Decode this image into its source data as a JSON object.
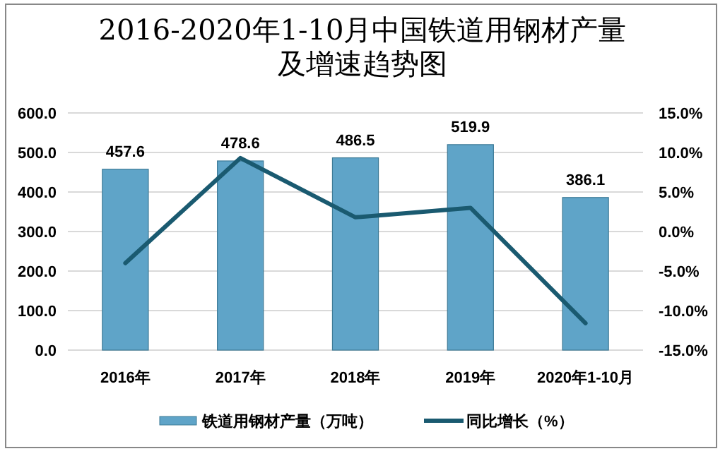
{
  "chart_data": {
    "type": "bar",
    "title": "2016-2020年1-10月中国铁道用钢材产量及增速趋势图",
    "categories": [
      "2016年",
      "2017年",
      "2018年",
      "2019年",
      "2020年1-10月"
    ],
    "series": [
      {
        "name": "铁道用钢材产量（万吨）",
        "color": "#5fa4c8",
        "values": [
          457.6,
          478.6,
          486.5,
          519.9,
          386.1
        ],
        "value_labels": [
          "457.6",
          "478.6",
          "486.5",
          "519.9",
          "386.1"
        ]
      },
      {
        "name": "同比增长（%）",
        "type": "line",
        "axis": "y2",
        "color": "#1a5a70",
        "values": [
          -4.0,
          9.3,
          1.8,
          3.0,
          -11.6
        ]
      }
    ],
    "ylim": [
      0,
      600
    ],
    "yticks": [
      {
        "value": 0,
        "label": "0.0"
      },
      {
        "value": 100,
        "label": "100.0"
      },
      {
        "value": 200,
        "label": "200.0"
      },
      {
        "value": 300,
        "label": "300.0"
      },
      {
        "value": 400,
        "label": "400.0"
      },
      {
        "value": 500,
        "label": "500.0"
      },
      {
        "value": 600,
        "label": "600.0"
      }
    ],
    "y2lim": [
      -15,
      15
    ],
    "y2ticks": [
      {
        "value": -15,
        "label": "-15.0%"
      },
      {
        "value": -10,
        "label": "-10.0%"
      },
      {
        "value": -5,
        "label": "-5.0%"
      },
      {
        "value": 0,
        "label": "0.0%"
      },
      {
        "value": 5,
        "label": "5.0%"
      },
      {
        "value": 10,
        "label": "10.0%"
      },
      {
        "value": 15,
        "label": "15.0%"
      }
    ],
    "grid": "y",
    "legend": "bottom"
  }
}
